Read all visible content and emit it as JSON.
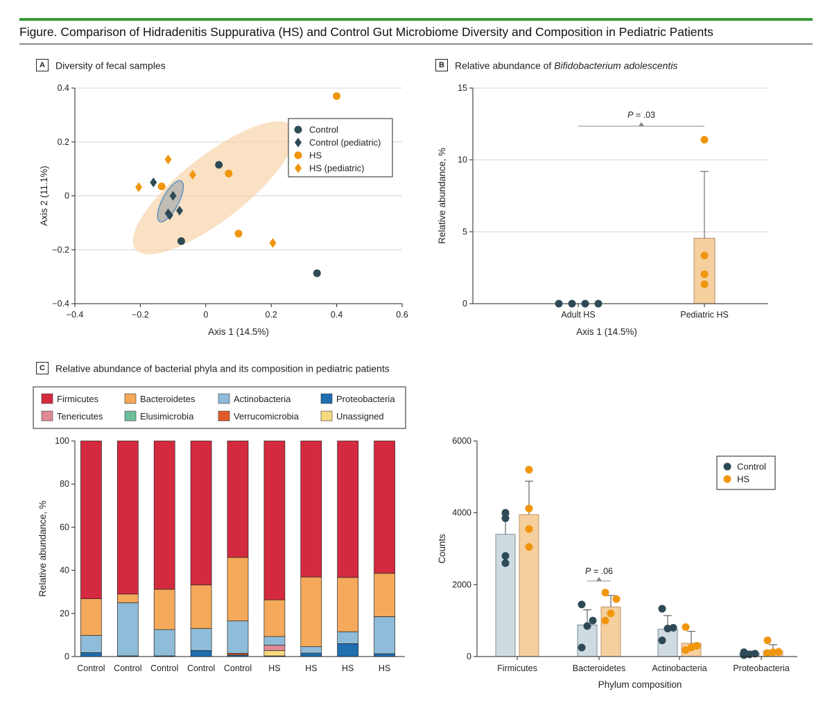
{
  "figure": {
    "title": "Figure. Comparison of Hidradenitis Suppurativa (HS) and Control Gut Microbiome Diversity and Composition in Pediatric Patients",
    "panel_a": {
      "letter": "A",
      "title": "Diversity of fecal samples"
    },
    "panel_b": {
      "letter": "B",
      "title_prefix": "Relative abundance of ",
      "title_italic": "Bifidobacterium adolescentis"
    },
    "panel_c": {
      "letter": "C",
      "title": "Relative abundance of bacterial phyla and its composition in pediatric patients"
    }
  },
  "colors": {
    "control": "#2f4a57",
    "hs": "#f0960c",
    "firmicutes": "#d42a3f",
    "bacteroidetes": "#f5a95a",
    "actinobacteria": "#8fbcd8",
    "proteobacteria": "#1f6fb0",
    "tenericutes": "#e08a96",
    "elusimicrobia": "#6dbf9b",
    "verrucomicrobia": "#e05a2a",
    "unassigned": "#f7da80",
    "control_bar": "#cfdbe1",
    "hs_bar": "#f6cf9f"
  },
  "chart_data": [
    {
      "id": "a",
      "type": "scatter",
      "title": "Diversity of fecal samples",
      "xlabel": "Axis 1 (14.5%)",
      "ylabel": "Axis 2 (11.1%)",
      "xlim": [
        -0.4,
        0.6
      ],
      "ylim": [
        -0.4,
        0.4
      ],
      "xticks": [
        -0.4,
        -0.2,
        0,
        0.2,
        0.4,
        0.6
      ],
      "xtick_labels": [
        "−0.4",
        "−0.2",
        "0",
        "0.2",
        "0.4",
        "0.6"
      ],
      "yticks": [
        -0.4,
        -0.2,
        0,
        0.2,
        0.4
      ],
      "ytick_labels": [
        "−0.4",
        "−0.2",
        "0",
        "0.2",
        "0.4"
      ],
      "legend": [
        "Control",
        "Control (pediatric)",
        "HS",
        "HS (pediatric)"
      ],
      "series": [
        {
          "name": "Control",
          "marker": "circle",
          "points": [
            [
              0.04,
              0.115
            ],
            [
              -0.075,
              -0.168
            ],
            [
              0.34,
              -0.287
            ]
          ]
        },
        {
          "name": "Control (pediatric)",
          "marker": "diamond",
          "points": [
            [
              -0.16,
              0.05
            ],
            [
              -0.1,
              0.0
            ],
            [
              -0.08,
              -0.055
            ],
            [
              -0.115,
              -0.065
            ],
            [
              -0.11,
              -0.072
            ]
          ]
        },
        {
          "name": "HS",
          "marker": "circle",
          "points": [
            [
              0.4,
              0.37
            ],
            [
              0.07,
              0.083
            ],
            [
              -0.135,
              0.035
            ],
            [
              0.1,
              -0.14
            ]
          ]
        },
        {
          "name": "HS (pediatric)",
          "marker": "diamond",
          "points": [
            [
              -0.205,
              0.032
            ],
            [
              -0.115,
              0.135
            ],
            [
              -0.04,
              0.078
            ],
            [
              0.205,
              -0.175
            ]
          ]
        }
      ],
      "ellipses": [
        {
          "group": "HS",
          "center": [
            0.025,
            0.03
          ],
          "semi_axes": [
            0.305,
            0.12
          ],
          "angle_deg": -38
        },
        {
          "group": "Control",
          "center": [
            -0.108,
            -0.02
          ],
          "semi_axes": [
            0.07,
            0.03
          ],
          "angle_deg": -62
        }
      ]
    },
    {
      "id": "b",
      "type": "bar",
      "title": "Relative abundance of Bifidobacterium adolescentis",
      "xlabel": "Axis 1 (14.5%)",
      "ylabel": "Relative abundance, %",
      "categories": [
        "Adult HS",
        "Pediatric HS"
      ],
      "values": [
        0,
        4.55
      ],
      "error_upper": [
        0,
        9.2
      ],
      "points": [
        [
          0,
          0,
          0,
          0
        ],
        [
          11.4,
          3.35,
          2.05,
          1.35
        ]
      ],
      "ylim": [
        0,
        15
      ],
      "yticks": [
        0,
        5,
        10,
        15
      ],
      "annotation": {
        "p_label": "P",
        "p_value": " = .03"
      }
    },
    {
      "id": "c_stack",
      "type": "bar",
      "stacked": true,
      "ylabel": "Relative abundance, %",
      "ylim": [
        0,
        100
      ],
      "yticks": [
        0,
        20,
        40,
        60,
        80,
        100
      ],
      "categories": [
        "Control",
        "Control",
        "Control",
        "Control",
        "Control",
        "HS",
        "HS",
        "HS",
        "HS"
      ],
      "legend": [
        "Firmicutes",
        "Bacteroidetes",
        "Actinobacteria",
        "Proteobacteria",
        "Tenericutes",
        "Elusimicrobia",
        "Verrucomicrobia",
        "Unassigned"
      ],
      "series": [
        {
          "name": "Proteobacteria",
          "values": [
            1.8,
            0.3,
            0.3,
            2.8,
            0.7,
            0.3,
            1.6,
            6.0,
            1.3
          ]
        },
        {
          "name": "Verrucomicrobia",
          "values": [
            0,
            0,
            0,
            0,
            0.8,
            0,
            0,
            0,
            0
          ]
        },
        {
          "name": "Unassigned",
          "values": [
            0,
            0,
            0,
            0,
            0,
            2.5,
            0,
            0,
            0
          ]
        },
        {
          "name": "Tenericutes",
          "values": [
            0,
            0,
            0,
            0,
            0,
            2.5,
            0,
            0,
            0
          ]
        },
        {
          "name": "Elusimicrobia",
          "values": [
            0,
            0,
            0,
            0,
            0,
            0,
            0,
            0,
            0
          ]
        },
        {
          "name": "Actinobacteria",
          "values": [
            8.0,
            24.7,
            12.2,
            10.2,
            15.0,
            4.0,
            3.0,
            5.5,
            17.2
          ]
        },
        {
          "name": "Bacteroidetes",
          "values": [
            17.0,
            4.0,
            18.7,
            20.2,
            29.5,
            17.0,
            32.3,
            25.2,
            20.1
          ]
        },
        {
          "name": "Firmicutes",
          "values": [
            73.2,
            71.0,
            68.8,
            66.8,
            54.0,
            73.7,
            63.1,
            63.3,
            61.4
          ]
        }
      ]
    },
    {
      "id": "c_counts",
      "type": "bar",
      "xlabel": "Phylum composition",
      "ylabel": "Counts",
      "ylim": [
        0,
        6000
      ],
      "yticks": [
        0,
        2000,
        4000,
        6000
      ],
      "categories": [
        "Firmicutes",
        "Bacteroidetes",
        "Actinobacteria",
        "Proteobacteria"
      ],
      "legend": [
        "Control",
        "HS"
      ],
      "series": [
        {
          "name": "Control",
          "values": [
            3400,
            880,
            760,
            90
          ],
          "error_upper": [
            3950,
            1300,
            1140,
            150
          ],
          "points": [
            [
              4000,
              3850,
              2800,
              2600
            ],
            [
              1450,
              1000,
              850,
              250
            ],
            [
              1330,
              800,
              780,
              450
            ],
            [
              120,
              80,
              60,
              40
            ]
          ]
        },
        {
          "name": "HS",
          "values": [
            3950,
            1380,
            370,
            160
          ],
          "error_upper": [
            4880,
            1700,
            700,
            330
          ],
          "points": [
            [
              5200,
              4120,
              3550,
              3050
            ],
            [
              1780,
              1600,
              1200,
              1000
            ],
            [
              820,
              300,
              250,
              180
            ],
            [
              450,
              130,
              120,
              100
            ]
          ]
        }
      ],
      "annotation": {
        "p_label": "P",
        "p_value": " = .06"
      }
    }
  ]
}
